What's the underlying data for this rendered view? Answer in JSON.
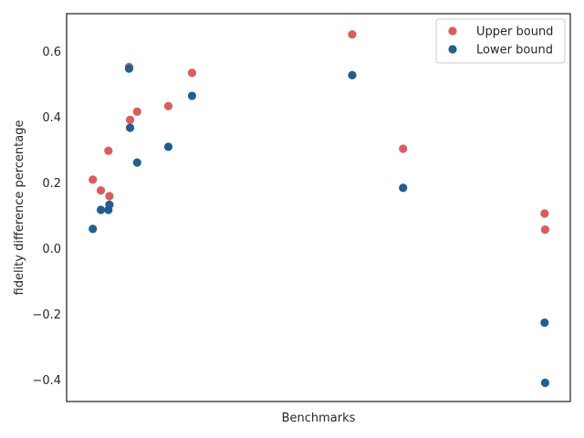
{
  "chart_data": {
    "type": "scatter",
    "xlabel": "Benchmarks",
    "ylabel": "fidelity difference percentage",
    "xlim": [
      0,
      100
    ],
    "ylim": [
      -0.465,
      0.715
    ],
    "yticks": [
      -0.4,
      -0.2,
      0.0,
      0.2,
      0.4,
      0.6
    ],
    "ytick_labels": [
      "−0.4",
      "−0.2",
      "0.0",
      "0.2",
      "0.4",
      "0.6"
    ],
    "grid": false,
    "legend_position": "top-right",
    "series": [
      {
        "name": "Upper bound",
        "color": "#e05a5a",
        "points": [
          {
            "x": 5.2,
            "y": 0.21
          },
          {
            "x": 6.8,
            "y": 0.177
          },
          {
            "x": 8.3,
            "y": 0.298
          },
          {
            "x": 8.5,
            "y": 0.16
          },
          {
            "x": 12.4,
            "y": 0.553
          },
          {
            "x": 12.6,
            "y": 0.392
          },
          {
            "x": 14.0,
            "y": 0.417
          },
          {
            "x": 20.2,
            "y": 0.434
          },
          {
            "x": 24.9,
            "y": 0.535
          },
          {
            "x": 56.7,
            "y": 0.652
          },
          {
            "x": 66.8,
            "y": 0.304
          },
          {
            "x": 94.9,
            "y": 0.107
          },
          {
            "x": 95.0,
            "y": 0.058
          }
        ]
      },
      {
        "name": "Lower bound",
        "color": "#1f5f91",
        "points": [
          {
            "x": 5.2,
            "y": 0.06
          },
          {
            "x": 6.8,
            "y": 0.118
          },
          {
            "x": 8.3,
            "y": 0.118
          },
          {
            "x": 8.5,
            "y": 0.134
          },
          {
            "x": 12.4,
            "y": 0.548
          },
          {
            "x": 12.6,
            "y": 0.368
          },
          {
            "x": 14.0,
            "y": 0.262
          },
          {
            "x": 20.2,
            "y": 0.31
          },
          {
            "x": 24.9,
            "y": 0.465
          },
          {
            "x": 56.7,
            "y": 0.528
          },
          {
            "x": 66.8,
            "y": 0.185
          },
          {
            "x": 94.9,
            "y": -0.225
          },
          {
            "x": 95.0,
            "y": -0.408
          }
        ]
      }
    ]
  }
}
